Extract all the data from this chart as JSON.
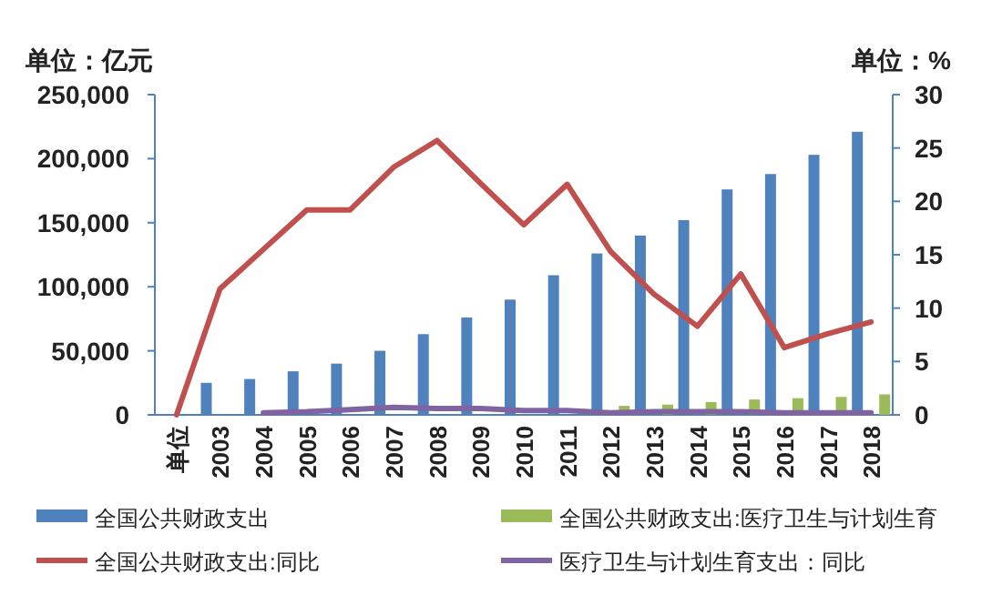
{
  "chart_data": {
    "type": "bar",
    "ylabel": "单位：亿元",
    "y2label": "单位：%",
    "categories": [
      "单位",
      "2003",
      "2004",
      "2005",
      "2006",
      "2007",
      "2008",
      "2009",
      "2010",
      "2011",
      "2012",
      "2013",
      "2014",
      "2015",
      "2016",
      "2017",
      "2018"
    ],
    "series": [
      {
        "name": "全国公共财政支出",
        "color": "#4f81bd",
        "values": [
          null,
          25000,
          28000,
          34000,
          40000,
          50000,
          63000,
          76000,
          90000,
          109000,
          126000,
          140000,
          152000,
          176000,
          188000,
          203000,
          221000
        ]
      },
      {
        "name": "全国公共财政支出:医疗卫生与计划生育",
        "color": "#9bbb59",
        "values": [
          null,
          null,
          null,
          null,
          null,
          null,
          null,
          null,
          null,
          null,
          7000,
          8000,
          10000,
          12000,
          13000,
          14000,
          16000
        ]
      },
      {
        "name": "全国公共财政支出:同比",
        "type": "line",
        "axis": "y2",
        "color": "#c0504d",
        "values": [
          0,
          11.8,
          15.5,
          19.2,
          19.2,
          23.2,
          25.7,
          21.7,
          17.8,
          21.6,
          15.3,
          11.3,
          8.3,
          13.2,
          6.3,
          7.6,
          8.7
        ]
      },
      {
        "name": "医疗卫生与计划生育支出：同比",
        "type": "line",
        "axis": "y2",
        "color": "#8064a2",
        "values": [
          null,
          null,
          0.2,
          0.3,
          0.5,
          0.7,
          0.6,
          0.6,
          0.4,
          0.4,
          0.2,
          0.3,
          0.3,
          0.3,
          0.2,
          0.2,
          0.2
        ]
      }
    ],
    "ylim": [
      0,
      250000
    ],
    "yticks": [
      {
        "value": 0,
        "label": "0"
      },
      {
        "value": 50000,
        "label": "50,000"
      },
      {
        "value": 100000,
        "label": "100,000"
      },
      {
        "value": 150000,
        "label": "150,000"
      },
      {
        "value": 200000,
        "label": "200,000"
      },
      {
        "value": 250000,
        "label": "250,000"
      }
    ],
    "y2lim": [
      0,
      30
    ],
    "y2ticks": [
      0,
      5,
      10,
      15,
      20,
      25,
      30
    ],
    "legend": "bottom",
    "grid": false
  }
}
